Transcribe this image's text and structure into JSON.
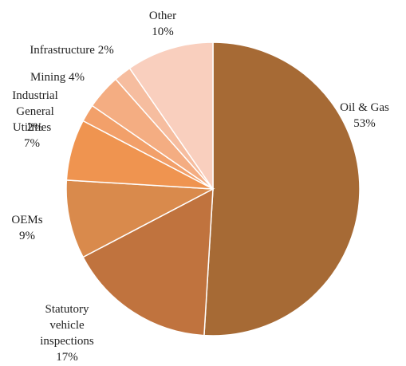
{
  "chart_data": {
    "type": "pie",
    "categories": [
      "Oil & Gas",
      "Statutory vehicle inspections",
      "OEMs",
      "Utilities",
      "Industrial General",
      "Mining",
      "Infrastructure",
      "Other"
    ],
    "values": [
      53,
      17,
      9,
      7,
      2,
      4,
      2,
      10
    ],
    "value_labels": [
      "53%",
      "17%",
      "9%",
      "7%",
      "2%",
      "4%",
      "2%",
      "10%"
    ],
    "colors": [
      "#a66a35",
      "#c0733e",
      "#d98a4c",
      "#ef9450",
      "#f2a06a",
      "#f4ad82",
      "#f6bd9f",
      "#f9cfbe"
    ]
  }
}
